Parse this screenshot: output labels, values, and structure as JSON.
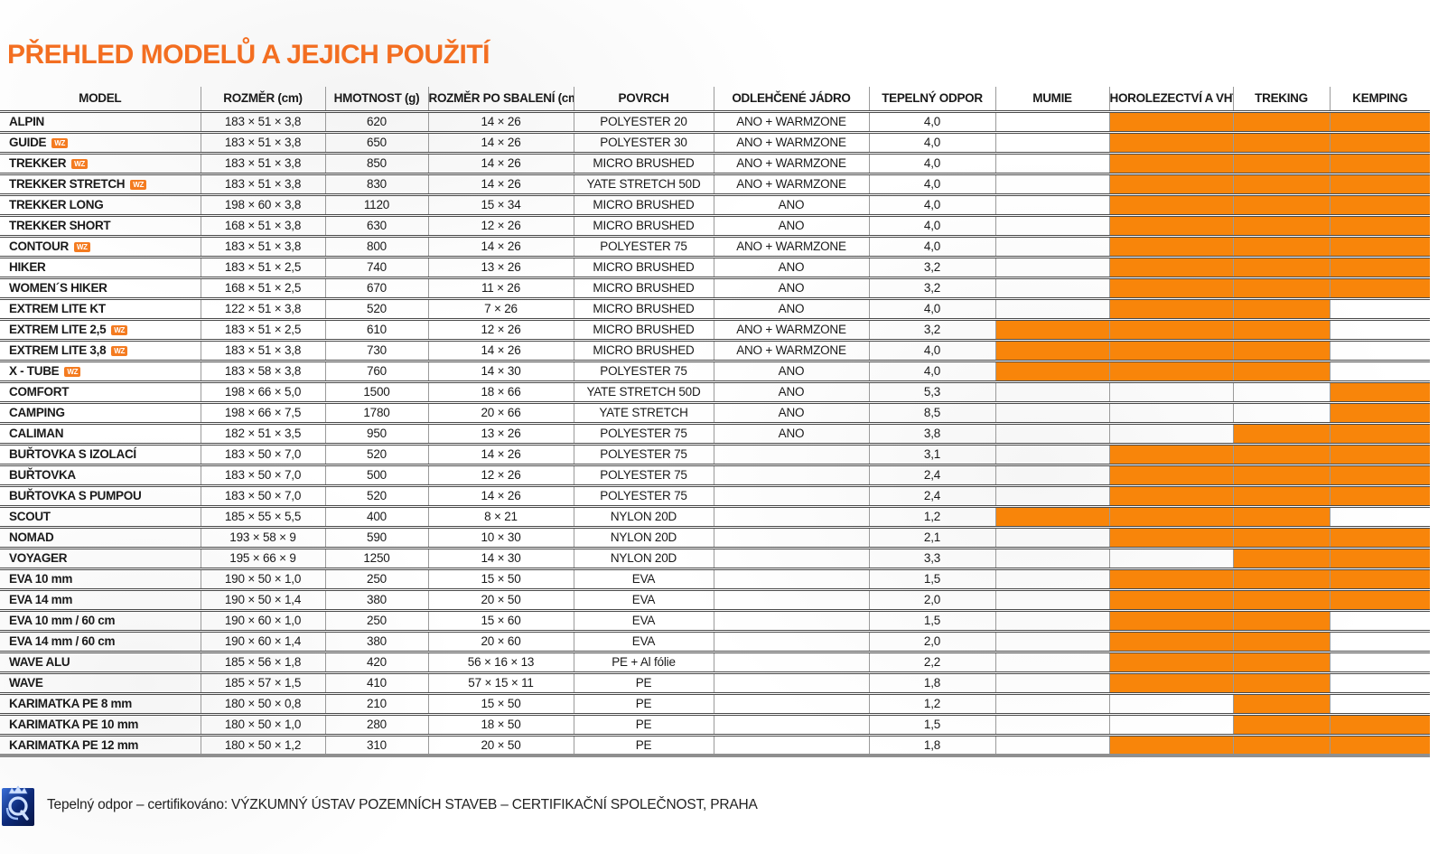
{
  "page": {
    "title": "PŘEHLED MODELŮ A JEJICH POUŽITÍ",
    "title_color": "#F36E21",
    "highlight_color": "#F8850A",
    "wz_badge_color": "#F47B20"
  },
  "table": {
    "columns": [
      "MODEL",
      "ROZMĚR (cm)",
      "HMOTNOST (g)",
      "ROZMĚR PO SBALENÍ (cm)",
      "POVRCH",
      "ODLEHČENÉ JÁDRO",
      "TEPELNÝ ODPOR",
      "MUMIE",
      "HOROLEZECTVÍ A VHT",
      "TREKING",
      "KEMPING"
    ],
    "usage_columns": [
      "MUMIE",
      "HOROLEZECTVÍ A VHT",
      "TREKING",
      "KEMPING"
    ],
    "wz_badge_label": "WZ",
    "rows": [
      {
        "model": "ALPIN",
        "wz": false,
        "rozmer": "183 × 51 × 3,8",
        "hmotnost": "620",
        "sbaleni": "14 × 26",
        "povrch": "POLYESTER 20",
        "jadro": "ANO + WARMZONE",
        "odpor": "4,0",
        "usage": [
          false,
          true,
          true,
          true
        ]
      },
      {
        "model": "GUIDE",
        "wz": true,
        "rozmer": "183 × 51 × 3,8",
        "hmotnost": "650",
        "sbaleni": "14 × 26",
        "povrch": "POLYESTER 30",
        "jadro": "ANO + WARMZONE",
        "odpor": "4,0",
        "usage": [
          false,
          true,
          true,
          true
        ]
      },
      {
        "model": "TREKKER",
        "wz": true,
        "rozmer": "183 × 51 × 3,8",
        "hmotnost": "850",
        "sbaleni": "14 × 26",
        "povrch": "MICRO BRUSHED",
        "jadro": "ANO + WARMZONE",
        "odpor": "4,0",
        "usage": [
          false,
          true,
          true,
          true
        ]
      },
      {
        "model": "TREKKER STRETCH",
        "wz": true,
        "rozmer": "183 × 51 × 3,8",
        "hmotnost": "830",
        "sbaleni": "14 × 26",
        "povrch": "YATE STRETCH 50D",
        "jadro": "ANO + WARMZONE",
        "odpor": "4,0",
        "usage": [
          false,
          true,
          true,
          true
        ]
      },
      {
        "model": "TREKKER LONG",
        "wz": false,
        "rozmer": "198 × 60 × 3,8",
        "hmotnost": "1120",
        "sbaleni": "15 × 34",
        "povrch": "MICRO BRUSHED",
        "jadro": "ANO",
        "odpor": "4,0",
        "usage": [
          false,
          true,
          true,
          true
        ]
      },
      {
        "model": "TREKKER SHORT",
        "wz": false,
        "rozmer": "168 × 51 × 3,8",
        "hmotnost": "630",
        "sbaleni": "12 × 26",
        "povrch": "MICRO BRUSHED",
        "jadro": "ANO",
        "odpor": "4,0",
        "usage": [
          false,
          true,
          true,
          true
        ]
      },
      {
        "model": "CONTOUR",
        "wz": true,
        "rozmer": "183 × 51 × 3,8",
        "hmotnost": "800",
        "sbaleni": "14 × 26",
        "povrch": "POLYESTER 75",
        "jadro": "ANO + WARMZONE",
        "odpor": "4,0",
        "usage": [
          false,
          true,
          true,
          true
        ]
      },
      {
        "model": "HIKER",
        "wz": false,
        "rozmer": "183 × 51 × 2,5",
        "hmotnost": "740",
        "sbaleni": "13 × 26",
        "povrch": "MICRO BRUSHED",
        "jadro": "ANO",
        "odpor": "3,2",
        "usage": [
          false,
          true,
          true,
          true
        ]
      },
      {
        "model": "WOMEN´S HIKER",
        "wz": false,
        "rozmer": "168 × 51 × 2,5",
        "hmotnost": "670",
        "sbaleni": "11 × 26",
        "povrch": "MICRO BRUSHED",
        "jadro": "ANO",
        "odpor": "3,2",
        "usage": [
          false,
          true,
          true,
          true
        ]
      },
      {
        "model": "EXTREM LITE KT",
        "wz": false,
        "rozmer": "122 × 51 × 3,8",
        "hmotnost": "520",
        "sbaleni": "7 × 26",
        "povrch": "MICRO BRUSHED",
        "jadro": "ANO",
        "odpor": "4,0",
        "usage": [
          false,
          true,
          true,
          false
        ]
      },
      {
        "model": "EXTREM LITE 2,5",
        "wz": true,
        "rozmer": "183 × 51 × 2,5",
        "hmotnost": "610",
        "sbaleni": "12 × 26",
        "povrch": "MICRO BRUSHED",
        "jadro": "ANO + WARMZONE",
        "odpor": "3,2",
        "usage": [
          true,
          true,
          true,
          false
        ]
      },
      {
        "model": "EXTREM LITE 3,8",
        "wz": true,
        "rozmer": "183 × 51 × 3,8",
        "hmotnost": "730",
        "sbaleni": "14 × 26",
        "povrch": "MICRO BRUSHED",
        "jadro": "ANO + WARMZONE",
        "odpor": "4,0",
        "usage": [
          true,
          true,
          true,
          false
        ]
      },
      {
        "model": "X - TUBE",
        "wz": true,
        "rozmer": "183 × 58 × 3,8",
        "hmotnost": "760",
        "sbaleni": "14 × 30",
        "povrch": "POLYESTER 75",
        "jadro": "ANO",
        "odpor": "4,0",
        "usage": [
          true,
          true,
          true,
          false
        ]
      },
      {
        "model": "COMFORT",
        "wz": false,
        "rozmer": "198 × 66 × 5,0",
        "hmotnost": "1500",
        "sbaleni": "18 × 66",
        "povrch": "YATE STRETCH 50D",
        "jadro": "ANO",
        "odpor": "5,3",
        "usage": [
          false,
          false,
          false,
          true
        ]
      },
      {
        "model": "CAMPING",
        "wz": false,
        "rozmer": "198 × 66 × 7,5",
        "hmotnost": "1780",
        "sbaleni": "20 × 66",
        "povrch": "YATE STRETCH",
        "jadro": "ANO",
        "odpor": "8,5",
        "usage": [
          false,
          false,
          false,
          true
        ]
      },
      {
        "model": "CALIMAN",
        "wz": false,
        "rozmer": "182 × 51 × 3,5",
        "hmotnost": "950",
        "sbaleni": "13 × 26",
        "povrch": "POLYESTER 75",
        "jadro": "ANO",
        "odpor": "3,8",
        "usage": [
          false,
          false,
          true,
          true
        ]
      },
      {
        "model": "BUŘTOVKA S IZOLACÍ",
        "wz": false,
        "rozmer": "183 × 50 × 7,0",
        "hmotnost": "520",
        "sbaleni": "14 × 26",
        "povrch": "POLYESTER 75",
        "jadro": "",
        "odpor": "3,1",
        "usage": [
          false,
          true,
          true,
          true
        ]
      },
      {
        "model": "BUŘTOVKA",
        "wz": false,
        "rozmer": "183 × 50 × 7,0",
        "hmotnost": "500",
        "sbaleni": "12 × 26",
        "povrch": "POLYESTER 75",
        "jadro": "",
        "odpor": "2,4",
        "usage": [
          false,
          true,
          true,
          true
        ]
      },
      {
        "model": "BUŘTOVKA S PUMPOU",
        "wz": false,
        "rozmer": "183 × 50 × 7,0",
        "hmotnost": "520",
        "sbaleni": "14 × 26",
        "povrch": "POLYESTER 75",
        "jadro": "",
        "odpor": "2,4",
        "usage": [
          false,
          true,
          true,
          true
        ]
      },
      {
        "model": "SCOUT",
        "wz": false,
        "rozmer": "185 × 55 × 5,5",
        "hmotnost": "400",
        "sbaleni": "8 × 21",
        "povrch": "NYLON 20D",
        "jadro": "",
        "odpor": "1,2",
        "usage": [
          true,
          true,
          true,
          false
        ]
      },
      {
        "model": "NOMAD",
        "wz": false,
        "rozmer": "193 × 58 × 9",
        "hmotnost": "590",
        "sbaleni": "10 × 30",
        "povrch": "NYLON 20D",
        "jadro": "",
        "odpor": "2,1",
        "usage": [
          false,
          true,
          true,
          true
        ]
      },
      {
        "model": "VOYAGER",
        "wz": false,
        "rozmer": "195 × 66 × 9",
        "hmotnost": "1250",
        "sbaleni": "14 × 30",
        "povrch": "NYLON 20D",
        "jadro": "",
        "odpor": "3,3",
        "usage": [
          false,
          false,
          true,
          true
        ]
      },
      {
        "model": "EVA 10 mm",
        "wz": false,
        "rozmer": "190 × 50 × 1,0",
        "hmotnost": "250",
        "sbaleni": "15 × 50",
        "povrch": "EVA",
        "jadro": "",
        "odpor": "1,5",
        "usage": [
          false,
          true,
          true,
          true
        ]
      },
      {
        "model": "EVA 14 mm",
        "wz": false,
        "rozmer": "190 × 50 × 1,4",
        "hmotnost": "380",
        "sbaleni": "20 × 50",
        "povrch": "EVA",
        "jadro": "",
        "odpor": "2,0",
        "usage": [
          false,
          true,
          true,
          true
        ]
      },
      {
        "model": "EVA 10 mm / 60 cm",
        "wz": false,
        "rozmer": "190 × 60 × 1,0",
        "hmotnost": "250",
        "sbaleni": "15 × 60",
        "povrch": "EVA",
        "jadro": "",
        "odpor": "1,5",
        "usage": [
          false,
          true,
          true,
          false
        ]
      },
      {
        "model": "EVA 14 mm / 60 cm",
        "wz": false,
        "rozmer": "190 × 60 × 1,4",
        "hmotnost": "380",
        "sbaleni": "20 × 60",
        "povrch": "EVA",
        "jadro": "",
        "odpor": "2,0",
        "usage": [
          false,
          true,
          true,
          false
        ]
      },
      {
        "model": "WAVE ALU",
        "wz": false,
        "rozmer": "185 × 56 × 1,8",
        "hmotnost": "420",
        "sbaleni": "56 × 16 × 13",
        "povrch": "PE + Al fólie",
        "jadro": "",
        "odpor": "2,2",
        "usage": [
          false,
          true,
          true,
          false
        ]
      },
      {
        "model": "WAVE",
        "wz": false,
        "rozmer": "185 × 57 × 1,5",
        "hmotnost": "410",
        "sbaleni": "57 × 15 × 11",
        "povrch": "PE",
        "jadro": "",
        "odpor": "1,8",
        "usage": [
          false,
          true,
          true,
          false
        ]
      },
      {
        "model": "KARIMATKA PE 8 mm",
        "wz": false,
        "rozmer": "180 × 50 × 0,8",
        "hmotnost": "210",
        "sbaleni": "15 × 50",
        "povrch": "PE",
        "jadro": "",
        "odpor": "1,2",
        "usage": [
          false,
          false,
          true,
          false
        ]
      },
      {
        "model": "KARIMATKA PE 10 mm",
        "wz": false,
        "rozmer": "180 × 50 × 1,0",
        "hmotnost": "280",
        "sbaleni": "18 × 50",
        "povrch": "PE",
        "jadro": "",
        "odpor": "1,5",
        "usage": [
          false,
          false,
          true,
          true
        ]
      },
      {
        "model": "KARIMATKA PE 12 mm",
        "wz": false,
        "rozmer": "180 × 50 × 1,2",
        "hmotnost": "310",
        "sbaleni": "20 × 50",
        "povrch": "PE",
        "jadro": "",
        "odpor": "1,8",
        "usage": [
          false,
          true,
          true,
          true
        ]
      }
    ]
  },
  "footer": {
    "text": "Tepelný odpor – certifikováno: VÝZKUMNÝ ÚSTAV POZEMNÍCH STAVEB – CERTIFIKAČNÍ SPOLEČNOST, PRAHA",
    "logo_icon": "certification-quality-logo"
  }
}
